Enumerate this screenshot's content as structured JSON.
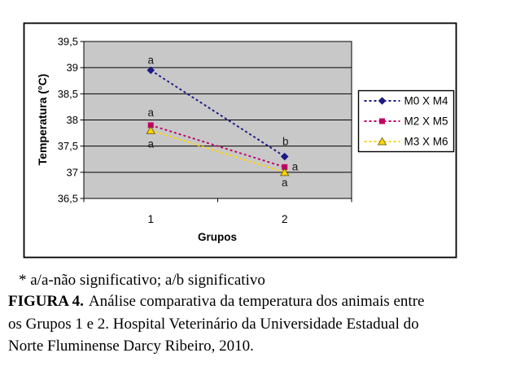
{
  "figure": {
    "note": "* a/a-não significativo; a/b significativo",
    "caption_label": "FIGURA 4.",
    "caption_line1": "Análise comparativa da temperatura dos animais entre",
    "caption_line2": "os Grupos 1 e 2. Hospital Veterinário da Universidade Estadual do",
    "caption_line3": "Norte Fluminense Darcy Ribeiro, 2010."
  },
  "chart_data": {
    "type": "line",
    "title": "",
    "xlabel": "Grupos",
    "ylabel": "Temperatura (°C)",
    "categories": [
      "1",
      "2"
    ],
    "ylim": [
      36.5,
      39.5
    ],
    "ytick_step": 0.5,
    "ytick_labels": [
      "36,5",
      "37",
      "37,5",
      "38",
      "38,5",
      "39",
      "39,5"
    ],
    "grid": true,
    "plot_background": "#C8C8C8",
    "legend_position": "right",
    "line_style": "dashed",
    "series": [
      {
        "name": "M0 X M4",
        "color": "#1B1B85",
        "marker": "diamond",
        "values": [
          38.95,
          37.3
        ],
        "point_labels": [
          {
            "text": "a",
            "dx": 0,
            "dy": -8,
            "anchor": "middle"
          },
          {
            "text": "b",
            "dx": 1,
            "dy": -14,
            "anchor": "middle"
          }
        ]
      },
      {
        "name": "M2 X M5",
        "color": "#C00066",
        "marker": "square",
        "values": [
          37.9,
          37.1
        ],
        "point_labels": [
          {
            "text": "a",
            "dx": 0,
            "dy": -11,
            "anchor": "middle"
          },
          {
            "text": "a",
            "dx": 9,
            "dy": 4,
            "anchor": "start"
          }
        ]
      },
      {
        "name": "M3 X M6",
        "color": "#FFD600",
        "marker": "triangle",
        "values": [
          37.8,
          37.0
        ],
        "point_labels": [
          {
            "text": "a",
            "dx": 0,
            "dy": 21,
            "anchor": "middle"
          },
          {
            "text": "a",
            "dx": 0,
            "dy": 17,
            "anchor": "middle"
          }
        ]
      }
    ]
  }
}
